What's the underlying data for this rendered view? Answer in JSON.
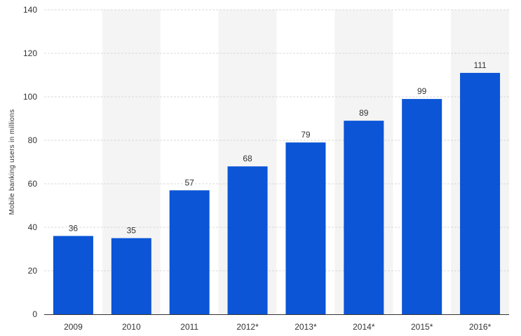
{
  "chart_data": {
    "type": "bar",
    "title": "",
    "xlabel": "",
    "ylabel": "Mobile banking users in millions",
    "categories": [
      "2009",
      "2010",
      "2011",
      "2012*",
      "2013*",
      "2014*",
      "2015*",
      "2016*"
    ],
    "values": [
      36,
      35,
      57,
      68,
      79,
      89,
      99,
      111
    ],
    "value_labels": [
      "36",
      "35",
      "57",
      "68",
      "79",
      "89",
      "99",
      "111"
    ],
    "ylim": [
      0,
      140
    ],
    "y_ticks": [
      0,
      20,
      40,
      60,
      80,
      100,
      120,
      140
    ],
    "y_tick_labels": [
      "0",
      "20",
      "40",
      "60",
      "80",
      "100",
      "120",
      "140"
    ],
    "grid": true,
    "legend": "none",
    "colors": {
      "bar": "#0b55d6",
      "band": "#f4f4f4",
      "grid": "#d8d8d8",
      "axis": "#333333",
      "text": "#333333"
    }
  }
}
